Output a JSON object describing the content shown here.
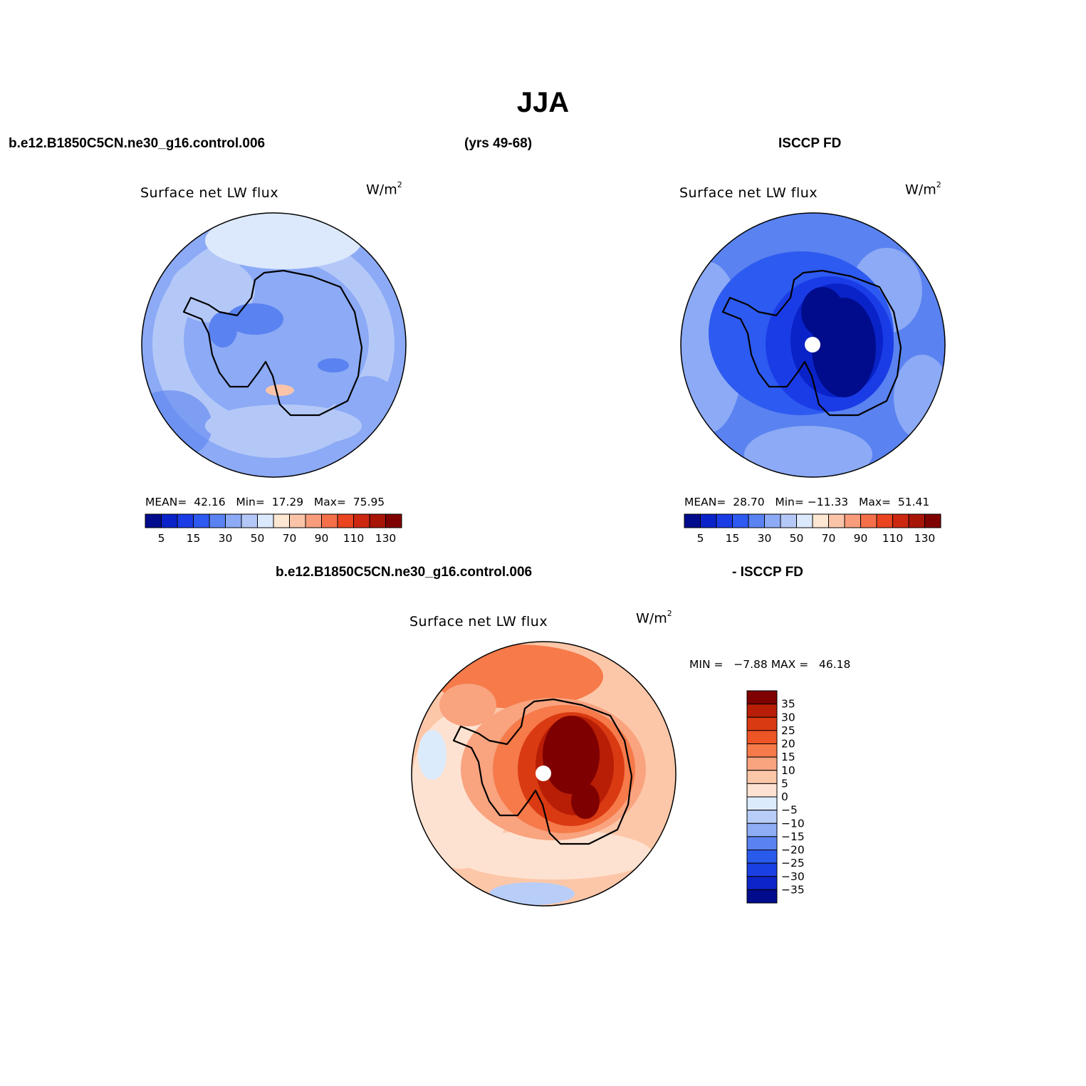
{
  "page": {
    "title": "JJA",
    "case_name": "b.e12.B1850C5CN.ne30_g16.control.006",
    "years": "(yrs 49-68)",
    "obs_name": "ISCCP FD",
    "diff_case_name": "b.e12.B1850C5CN.ne30_g16.control.006",
    "diff_obs_name": "- ISCCP FD"
  },
  "panels": {
    "model": {
      "title": "Surface net LW flux",
      "unit": "W/m",
      "unit_exp": "2",
      "stats": {
        "mean_label": "MEAN=",
        "mean": "42.16",
        "min_label": "Min=",
        "min": "17.29",
        "max_label": "Max=",
        "max": "75.95"
      }
    },
    "obs": {
      "title": "Surface net LW flux",
      "unit": "W/m",
      "unit_exp": "2",
      "stats": {
        "mean_label": "MEAN=",
        "mean": "28.70",
        "min_label": "Min=",
        "min": "−11.33",
        "max_label": "Max=",
        "max": "51.41"
      }
    },
    "diff": {
      "title": "Surface net LW flux",
      "unit": "W/m",
      "unit_exp": "2",
      "stats": {
        "min_label": "MIN =",
        "min": "−7.88",
        "max_label": "MAX =",
        "max": "46.18"
      }
    }
  },
  "colorbar_abs": {
    "colors": [
      "#000c8c",
      "#0a23c8",
      "#1a3ce6",
      "#2d5af0",
      "#5a82f0",
      "#8caaf5",
      "#b4c8f8",
      "#dce9fc",
      "#fde6d2",
      "#fbc4a9",
      "#f89c7b",
      "#f4704a",
      "#ea4420",
      "#cc2810",
      "#a81406",
      "#7f0000"
    ],
    "tick_labels": [
      "5",
      "15",
      "30",
      "50",
      "70",
      "90",
      "110",
      "130"
    ]
  },
  "colorbar_diff": {
    "colors_top_to_bottom": [
      "#7f0000",
      "#b81e06",
      "#da3a12",
      "#ee5526",
      "#f67a4a",
      "#f9a37f",
      "#fcc7a8",
      "#fee2d1",
      "#dcebfc",
      "#b8cef8",
      "#8eadf4",
      "#5a82f0",
      "#2a5aeb",
      "#1a40e4",
      "#0c24c8",
      "#000c8c"
    ],
    "tick_labels_top_to_bottom": [
      "35",
      "30",
      "25",
      "20",
      "15",
      "10",
      "5",
      "0",
      "−5",
      "−10",
      "−15",
      "−20",
      "−25",
      "−30",
      "−35"
    ]
  }
}
